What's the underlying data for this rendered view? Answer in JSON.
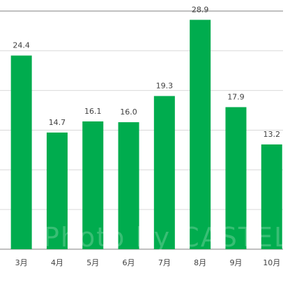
{
  "chart_data": {
    "type": "bar",
    "categories": [
      "3月",
      "4月",
      "5月",
      "6月",
      "7月",
      "8月",
      "9月",
      "10月"
    ],
    "values": [
      24.4,
      14.7,
      16.1,
      16.0,
      19.3,
      28.9,
      17.9,
      13.2
    ],
    "data_labels": [
      "24.4",
      "14.7",
      "16.1",
      "16.0",
      "19.3",
      "28.9",
      "17.9",
      "13.2"
    ],
    "title": "",
    "xlabel": "",
    "ylabel": "",
    "ylim": [
      0,
      30
    ],
    "y_tick_step": 5,
    "grid": true,
    "bar_color": "#00AC4E",
    "grid_color": "#D9D9D9",
    "axis_color": "#808080"
  },
  "watermark": "Photo by CASTEL"
}
